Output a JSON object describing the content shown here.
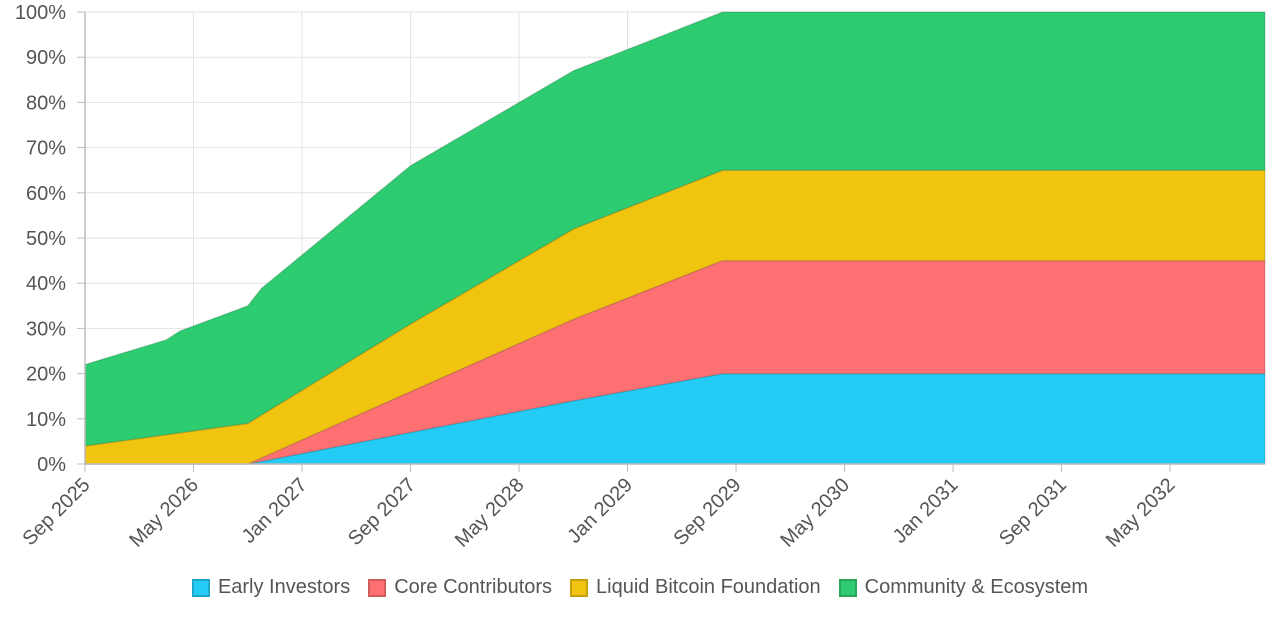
{
  "chart_data": {
    "type": "area",
    "stacked": true,
    "title": "",
    "xlabel": "",
    "ylabel": "",
    "ylim": [
      0,
      100
    ],
    "xlim": [
      "2025-09",
      "2032-12"
    ],
    "y_ticks": [
      "0%",
      "10%",
      "20%",
      "30%",
      "40%",
      "50%",
      "60%",
      "70%",
      "80%",
      "90%",
      "100%"
    ],
    "x_ticks": [
      {
        "date": "2025-09",
        "label": "Sep 2025"
      },
      {
        "date": "2026-05",
        "label": "May 2026"
      },
      {
        "date": "2027-01",
        "label": "Jan 2027"
      },
      {
        "date": "2027-09",
        "label": "Sep 2027"
      },
      {
        "date": "2028-05",
        "label": "May 2028"
      },
      {
        "date": "2029-01",
        "label": "Jan 2029"
      },
      {
        "date": "2029-09",
        "label": "Sep 2029"
      },
      {
        "date": "2030-05",
        "label": "May 2030"
      },
      {
        "date": "2031-01",
        "label": "Jan 2031"
      },
      {
        "date": "2031-09",
        "label": "Sep 2031"
      },
      {
        "date": "2032-05",
        "label": "May 2032"
      }
    ],
    "grid": true,
    "legend": "bottom",
    "series": [
      {
        "name": "Early Investors",
        "color": "#24cbf5",
        "points": [
          [
            "2025-09",
            0
          ],
          [
            "2026-09",
            0
          ],
          [
            "2027-09",
            7
          ],
          [
            "2028-09",
            14
          ],
          [
            "2029-08",
            20
          ],
          [
            "2032-12",
            20
          ]
        ]
      },
      {
        "name": "Core Contributors",
        "color": "#ff7072",
        "points": [
          [
            "2025-09",
            0
          ],
          [
            "2026-09",
            0
          ],
          [
            "2027-09",
            9
          ],
          [
            "2028-09",
            18
          ],
          [
            "2029-08",
            25
          ],
          [
            "2032-12",
            25
          ]
        ]
      },
      {
        "name": "Liquid Bitcoin Foundation",
        "color": "#f0c40f",
        "points": [
          [
            "2025-09",
            4
          ],
          [
            "2026-09",
            9
          ],
          [
            "2027-09",
            15
          ],
          [
            "2028-09",
            20
          ],
          [
            "2029-08",
            20
          ],
          [
            "2032-12",
            20
          ]
        ]
      },
      {
        "name": "Community & Ecosystem",
        "color": "#2ecc71",
        "points": [
          [
            "2025-09",
            18
          ],
          [
            "2026-03",
            21
          ],
          [
            "2026-04",
            22.5
          ],
          [
            "2026-09",
            26
          ],
          [
            "2026-10",
            28
          ],
          [
            "2027-09",
            35
          ],
          [
            "2028-09",
            35
          ],
          [
            "2029-08",
            35
          ],
          [
            "2032-12",
            35
          ]
        ]
      }
    ]
  }
}
